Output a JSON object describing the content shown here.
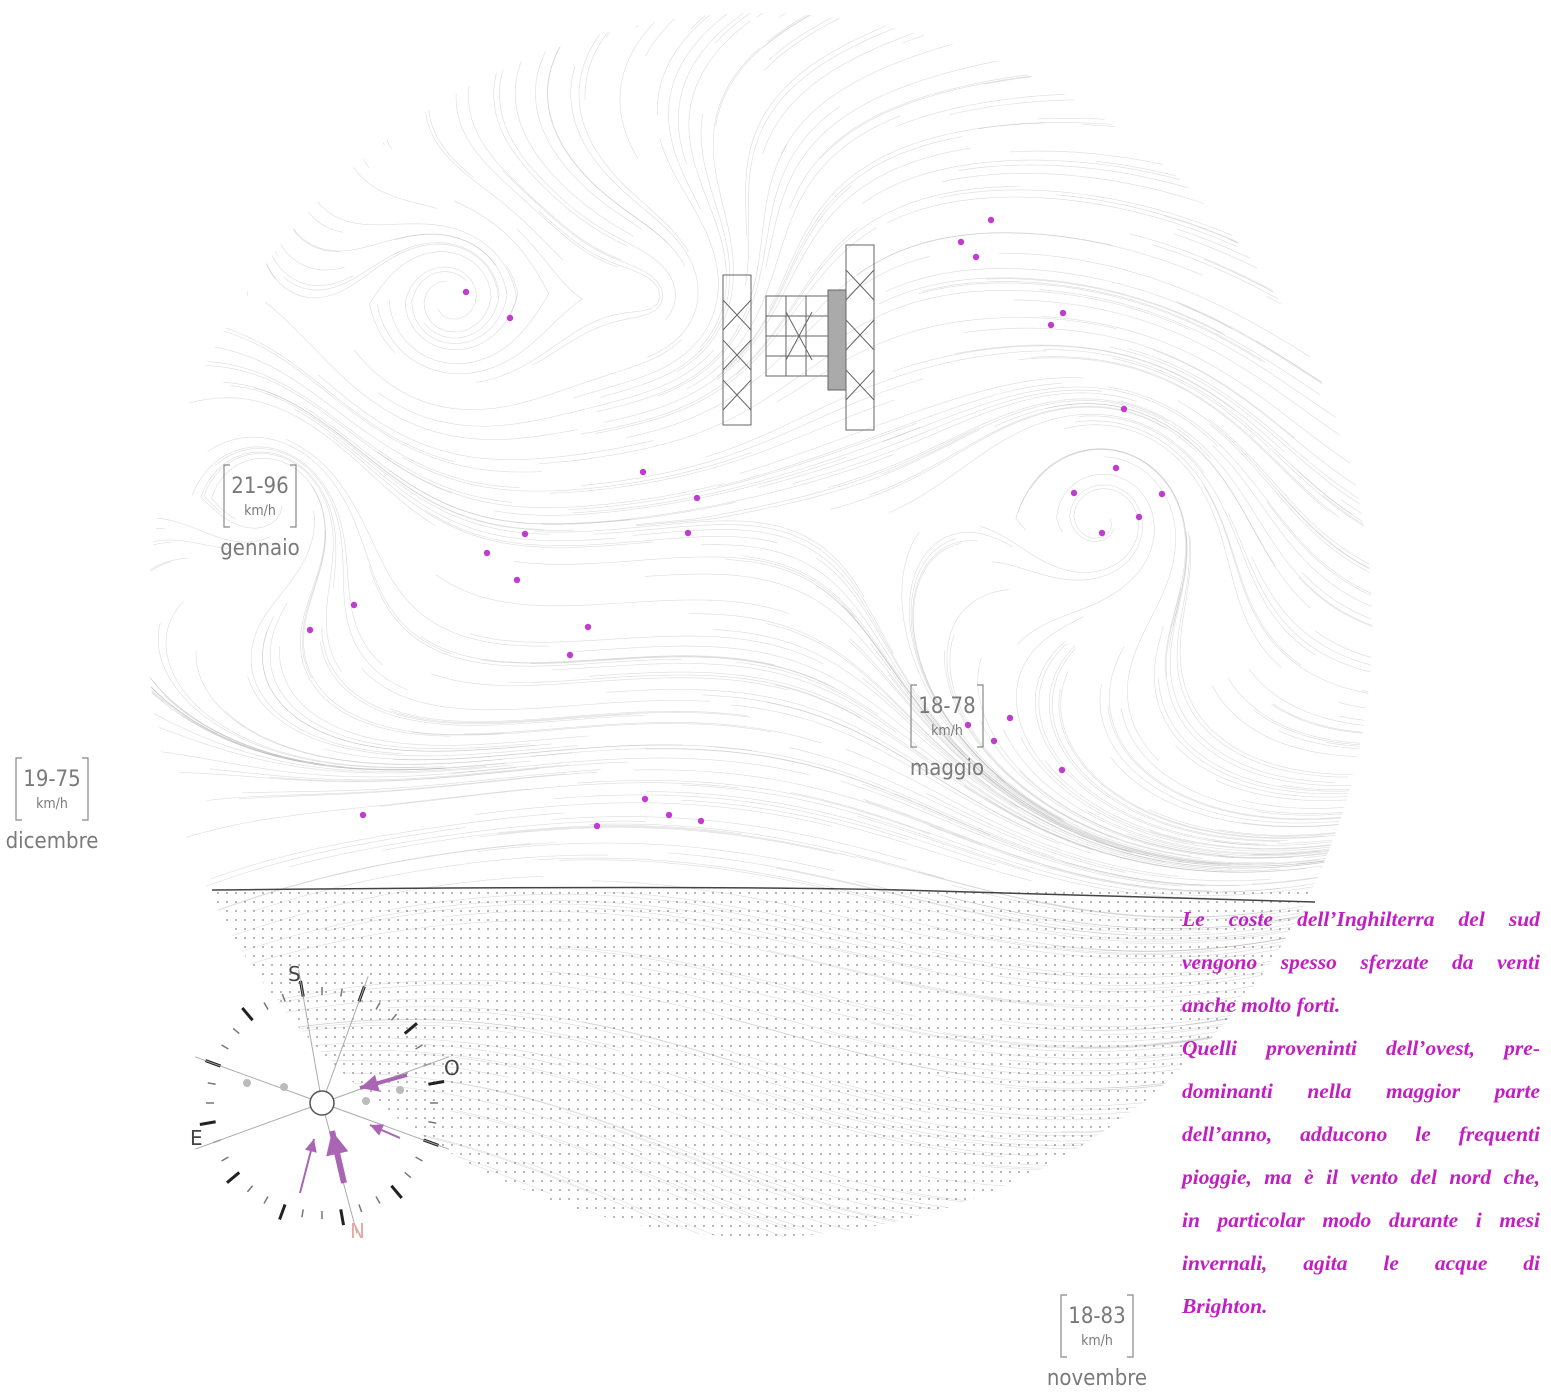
{
  "wind_labels": [
    {
      "range": "21-96",
      "unit": "km/h",
      "month": "gennaio"
    },
    {
      "range": "18-78",
      "unit": "km/h",
      "month": "maggio"
    },
    {
      "range": "19-75",
      "unit": "km/h",
      "month": "dicembre"
    },
    {
      "range": "18-83",
      "unit": "km/h",
      "month": "novembre"
    }
  ],
  "compass": {
    "north": "N",
    "south": "S",
    "east": "E",
    "west": "O"
  },
  "caption": {
    "lines": [
      "Le coste dell’Inghilterra del sud",
      "vengono spesso sferzate da venti",
      "anche molto forti.",
      "Quelli proveninti dell’ovest, pre-",
      "dominanti nella maggior parte",
      "dell’anno, adducono le frequenti",
      "pioggie, ma è il vento del nord che,",
      "in particolar modo durante i mesi",
      "invernali, agita le acque di",
      "Brighton."
    ]
  }
}
